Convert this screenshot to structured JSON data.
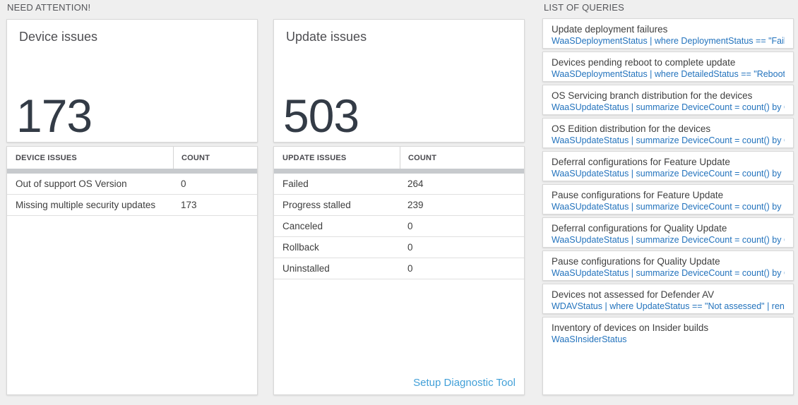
{
  "colors": {
    "page_background": "#efefef",
    "card_background": "#ffffff",
    "big_number_text": "#333b46",
    "query_link_blue": "#2373bd",
    "setup_link_blue": "#42a0d8",
    "scrollbar_gray": "#c7cacd"
  },
  "need_attention": {
    "header": "NEED ATTENTION!",
    "device_card": {
      "title": "Device issues",
      "count": "173"
    },
    "device_table": {
      "col_issue": "DEVICE ISSUES",
      "col_count": "COUNT",
      "rows": [
        {
          "label": "Out of support OS Version",
          "count": "0"
        },
        {
          "label": "Missing multiple security updates",
          "count": "173"
        }
      ]
    },
    "update_card": {
      "title": "Update issues",
      "count": "503"
    },
    "update_table": {
      "col_issue": "UPDATE ISSUES",
      "col_count": "COUNT",
      "rows": [
        {
          "label": "Failed",
          "count": "264"
        },
        {
          "label": "Progress stalled",
          "count": "239"
        },
        {
          "label": "Canceled",
          "count": "0"
        },
        {
          "label": "Rollback",
          "count": "0"
        },
        {
          "label": "Uninstalled",
          "count": "0"
        }
      ],
      "footer_link": "Setup Diagnostic Tool"
    }
  },
  "queries": {
    "header": "LIST OF QUERIES",
    "items": [
      {
        "title": "Update deployment failures",
        "query": "WaaSDeploymentStatus | where DeploymentStatus == \"Failed\" |..."
      },
      {
        "title": "Devices pending reboot to complete update",
        "query": "WaaSDeploymentStatus | where DetailedStatus == \"Reboot pend..."
      },
      {
        "title": "OS Servicing branch distribution for the devices",
        "query": "WaaSUpdateStatus | summarize DeviceCount = count() by OSSer..."
      },
      {
        "title": "OS Edition distribution for the devices",
        "query": "WaaSUpdateStatus | summarize DeviceCount = count() by OSEdit..."
      },
      {
        "title": "Deferral configurations for Feature Update",
        "query": "WaaSUpdateStatus | summarize DeviceCount = count() by Featur..."
      },
      {
        "title": "Pause configurations for Feature Update",
        "query": "WaaSUpdateStatus | summarize DeviceCount = count() by Featur..."
      },
      {
        "title": "Deferral configurations for Quality Update",
        "query": "WaaSUpdateStatus | summarize DeviceCount = count() by Qualit..."
      },
      {
        "title": "Pause configurations for Quality Update",
        "query": "WaaSUpdateStatus | summarize DeviceCount = count() by Qualit..."
      },
      {
        "title": "Devices not assessed for Defender AV",
        "query": "WDAVStatus | where UpdateStatus == \"Not assessed\" | render ta..."
      },
      {
        "title": "Inventory of devices on Insider builds",
        "query": "WaaSInsiderStatus"
      }
    ]
  }
}
